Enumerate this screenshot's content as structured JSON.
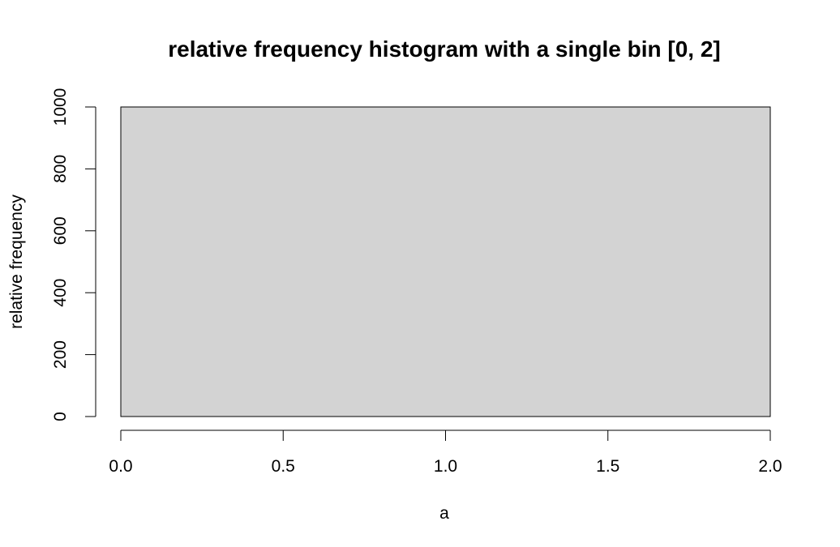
{
  "chart_data": {
    "type": "bar",
    "title": "relative frequency histogram with a single bin [0, 2]",
    "xlabel": "a",
    "ylabel": "relative frequency",
    "bins": [
      {
        "start": 0,
        "end": 2,
        "value": 1000
      }
    ],
    "xlim": [
      0,
      2
    ],
    "ylim": [
      0,
      1000
    ],
    "x_ticks": [
      0,
      0.5,
      1,
      1.5,
      2
    ],
    "x_tick_labels": [
      "0.0",
      "0.5",
      "1.0",
      "1.5",
      "2.0"
    ],
    "y_ticks": [
      0,
      200,
      400,
      600,
      800,
      1000
    ],
    "y_tick_labels": [
      "0",
      "200",
      "400",
      "600",
      "800",
      "1000"
    ],
    "grid": false,
    "legend": "none",
    "colors": {
      "bar_fill": "#d3d3d3",
      "bar_stroke": "#000000"
    }
  }
}
